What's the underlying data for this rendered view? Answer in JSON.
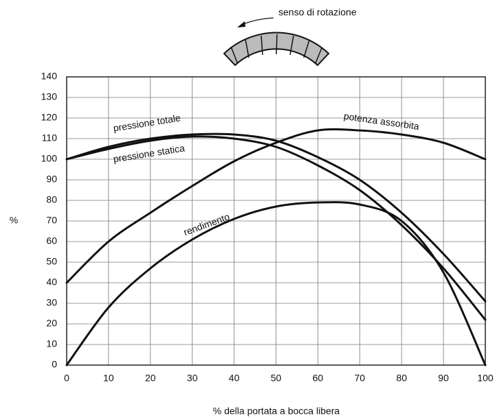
{
  "chart_data": {
    "type": "line",
    "annotation": "senso di rotazione",
    "xlabel": "% della portata a bocca libera",
    "ylabel": "%",
    "x": [
      0,
      10,
      20,
      30,
      40,
      50,
      60,
      70,
      80,
      90,
      100
    ],
    "series": [
      {
        "name": "pressione totale",
        "color": "#111111",
        "values": [
          100,
          106,
          110,
          112,
          112,
          109,
          101,
          90,
          74,
          54,
          31
        ]
      },
      {
        "name": "pressione statica",
        "color": "#111111",
        "values": [
          100,
          105,
          109,
          111,
          110,
          106,
          97,
          85,
          68,
          47,
          22
        ]
      },
      {
        "name": "potenza assorbita",
        "color": "#111111",
        "values": [
          40,
          60,
          74,
          87,
          99,
          108,
          114,
          114,
          112,
          108,
          100
        ]
      },
      {
        "name": "rendimento",
        "color": "#111111",
        "values": [
          0,
          28,
          47,
          61,
          71,
          77,
          79,
          78,
          70,
          45,
          0
        ]
      }
    ],
    "xlim": [
      0,
      100
    ],
    "xticks": [
      0,
      10,
      20,
      30,
      40,
      50,
      60,
      70,
      80,
      90,
      100
    ],
    "ylim": [
      0,
      140
    ],
    "yticks": [
      0,
      10,
      20,
      30,
      40,
      50,
      60,
      70,
      80,
      90,
      100,
      110,
      120,
      130,
      140
    ],
    "grid": true
  }
}
